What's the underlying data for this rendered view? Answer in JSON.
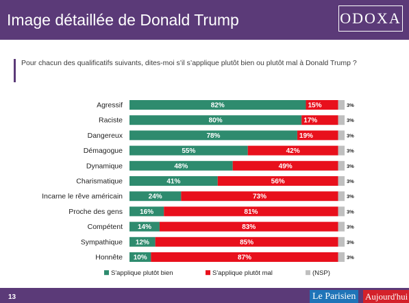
{
  "header": {
    "title": "Image détaillée de Donald Trump",
    "logo_text": "ODOXA"
  },
  "question": "Pour chacun des qualificatifs suivants, dites-moi s’il s’applique plutôt bien ou plutôt mal à Donald Trump ?",
  "footer": {
    "page_number": "13",
    "brand1": "Le Parisien",
    "brand2": "Aujourd'hui"
  },
  "colors": {
    "header": "#5b3a78",
    "bien": "#2e8b6e",
    "mal": "#e8101c",
    "nsp": "#bfbfbf"
  },
  "chart_data": {
    "type": "bar",
    "orientation": "horizontal",
    "stacked": true,
    "categories": [
      "Agressif",
      "Raciste",
      "Dangereux",
      "Démagogue",
      "Dynamique",
      "Charismatique",
      "Incarne le rêve américain",
      "Proche des gens",
      "Compétent",
      "Sympathique",
      "Honnête"
    ],
    "series": [
      {
        "name": "S'applique plutôt bien",
        "values": [
          82,
          80,
          78,
          55,
          48,
          41,
          24,
          16,
          14,
          12,
          10
        ]
      },
      {
        "name": "S'applique plutôt mal",
        "values": [
          15,
          17,
          19,
          42,
          49,
          56,
          73,
          81,
          83,
          85,
          87
        ]
      },
      {
        "name": "(NSP)",
        "values": [
          3,
          3,
          3,
          3,
          3,
          3,
          3,
          3,
          3,
          3,
          3
        ]
      }
    ],
    "value_suffix": "%",
    "xlim": [
      0,
      100
    ],
    "legend_position": "bottom",
    "grid": false
  }
}
